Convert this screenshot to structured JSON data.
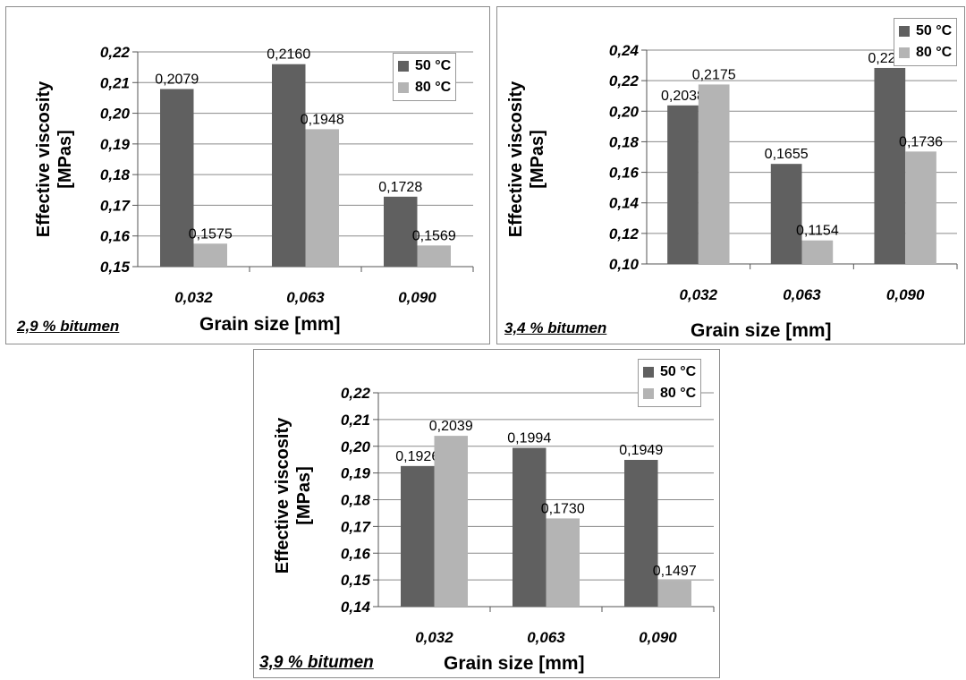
{
  "chart_data": [
    {
      "type": "bar",
      "annotation": "2,9 % bitumen",
      "xlabel": "Grain size [mm]",
      "ylabel": "Effective viscosity [MPas]",
      "categories": [
        "0,032",
        "0,063",
        "0,090"
      ],
      "ylim": [
        0.15,
        0.22
      ],
      "yticks": [
        "0,15",
        "0,16",
        "0,17",
        "0,18",
        "0,19",
        "0,20",
        "0,21",
        "0,22"
      ],
      "legend_position": "top-right",
      "gridlines": true,
      "series": [
        {
          "name": "50 °C",
          "color": "#606060",
          "values": [
            0.2079,
            0.216,
            0.1728
          ],
          "labels": [
            "0,2079",
            "0,2160",
            "0,1728"
          ]
        },
        {
          "name": "80 °C",
          "color": "#b4b4b4",
          "values": [
            0.1575,
            0.1948,
            0.1569
          ],
          "labels": [
            "0,1575",
            "0,1948",
            "0,1569"
          ]
        }
      ]
    },
    {
      "type": "bar",
      "annotation": "3,4 % bitumen",
      "xlabel": "Grain size [mm]",
      "ylabel": "Effective viscosity [MPas]",
      "categories": [
        "0,032",
        "0,063",
        "0,090"
      ],
      "ylim": [
        0.1,
        0.24
      ],
      "yticks": [
        "0,10",
        "0,12",
        "0,14",
        "0,16",
        "0,18",
        "0,20",
        "0,22",
        "0,24"
      ],
      "legend_position": "top-right",
      "gridlines": true,
      "series": [
        {
          "name": "50 °C",
          "color": "#606060",
          "values": [
            0.2038,
            0.1655,
            0.2283
          ],
          "labels": [
            "0,2038",
            "0,1655",
            "0,2283"
          ]
        },
        {
          "name": "80 °C",
          "color": "#b4b4b4",
          "values": [
            0.2175,
            0.1154,
            0.1736
          ],
          "labels": [
            "0,2175",
            "0,1154",
            "0,1736"
          ]
        }
      ]
    },
    {
      "type": "bar",
      "annotation": "3,9 % bitumen",
      "xlabel": "Grain size [mm]",
      "ylabel": "Effective viscosity [MPas]",
      "categories": [
        "0,032",
        "0,063",
        "0,090"
      ],
      "ylim": [
        0.14,
        0.22
      ],
      "yticks": [
        "0,14",
        "0,15",
        "0,16",
        "0,17",
        "0,18",
        "0,19",
        "0,20",
        "0,21",
        "0,22"
      ],
      "legend_position": "top-right",
      "gridlines": true,
      "series": [
        {
          "name": "50 °C",
          "color": "#606060",
          "values": [
            0.1926,
            0.1994,
            0.1949
          ],
          "labels": [
            "0,1926",
            "0,1994",
            "0,1949"
          ]
        },
        {
          "name": "80 °C",
          "color": "#b4b4b4",
          "values": [
            0.2039,
            0.173,
            0.1497
          ],
          "labels": [
            "0,2039",
            "0,1730",
            "0,1497"
          ]
        }
      ]
    }
  ]
}
